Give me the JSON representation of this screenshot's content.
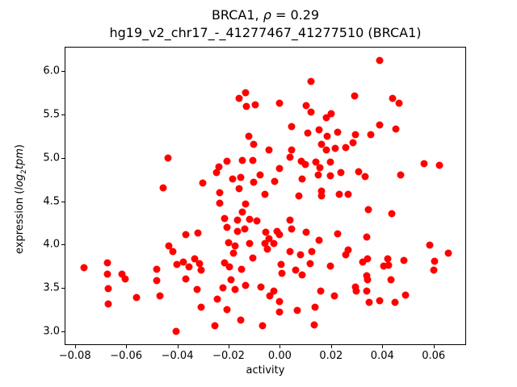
{
  "figure": {
    "title_prefix": "BRCA1, ",
    "title_rho": "ρ",
    "title_suffix": " = 0.29",
    "subtitle": "hg19_v2_chr17_-_41277467_41277510 (BRCA1)",
    "xlabel": "activity",
    "ylabel_prefix": "expression (",
    "ylabel_log": "log",
    "ylabel_sub": "2",
    "ylabel_tpm": "tpm",
    "ylabel_suffix": ")"
  },
  "chart_data": {
    "type": "scatter",
    "title": "BRCA1, ρ = 0.29",
    "subtitle": "hg19_v2_chr17_-_41277467_41277510 (BRCA1)",
    "xlabel": "activity",
    "ylabel": "expression (log2tpm)",
    "marker_color": "#ff0000",
    "marker_size_px": 9,
    "grid": false,
    "xlim": [
      -0.084,
      0.0727
    ],
    "ylim": [
      2.839,
      6.283
    ],
    "xticks": [
      -0.08,
      -0.06,
      -0.04,
      -0.02,
      0.0,
      0.02,
      0.04,
      0.06
    ],
    "xtick_labels": [
      "−0.08",
      "−0.06",
      "−0.04",
      "−0.02",
      "0.00",
      "0.02",
      "0.04",
      "0.06"
    ],
    "yticks": [
      3.0,
      3.5,
      4.0,
      4.5,
      5.0,
      5.5,
      6.0
    ],
    "ytick_labels": [
      "3.0",
      "3.5",
      "4.0",
      "4.5",
      "5.0",
      "5.5",
      "6.0"
    ],
    "points": [
      [
        -0.044,
        5.01
      ],
      [
        -0.046,
        4.66
      ],
      [
        0.012,
        5.89
      ],
      [
        -0.0136,
        5.76
      ],
      [
        -0.0161,
        5.7
      ],
      [
        -0.0133,
        5.6
      ],
      [
        -0.0098,
        5.62
      ],
      [
        -0.0006,
        5.64
      ],
      [
        0.0101,
        5.61
      ],
      [
        0.012,
        5.54
      ],
      [
        0.0177,
        5.47
      ],
      [
        0.0196,
        5.52
      ],
      [
        0.0044,
        5.37
      ],
      [
        0.0107,
        5.3
      ],
      [
        0.0149,
        5.33
      ],
      [
        0.018,
        5.26
      ],
      [
        0.0224,
        5.31
      ],
      [
        -0.0123,
        5.26
      ],
      [
        -0.0104,
        5.17
      ],
      [
        -0.0044,
        5.1
      ],
      [
        0.0044,
        5.1
      ],
      [
        0.0035,
        5.02
      ],
      [
        0.0082,
        4.97
      ],
      [
        0.0095,
        4.93
      ],
      [
        0.0136,
        4.96
      ],
      [
        0.0161,
        5.17
      ],
      [
        0.0177,
        5.1
      ],
      [
        0.0212,
        5.12
      ],
      [
        0.0152,
        4.9
      ],
      [
        0.0193,
        4.96
      ],
      [
        -0.0209,
        4.97
      ],
      [
        -0.024,
        4.91
      ],
      [
        -0.0148,
        4.98
      ],
      [
        -0.0107,
        4.98
      ],
      [
        -0.025,
        4.84
      ],
      [
        -0.0186,
        4.77
      ],
      [
        -0.0155,
        4.78
      ],
      [
        -0.0104,
        4.73
      ],
      [
        -0.0079,
        4.81
      ],
      [
        -0.0022,
        4.74
      ],
      [
        -0.0303,
        4.72
      ],
      [
        -0.0006,
        4.89
      ],
      [
        0.0085,
        4.77
      ],
      [
        0.0148,
        4.81
      ],
      [
        0.0193,
        4.8
      ],
      [
        -0.0161,
        4.65
      ],
      [
        -0.0237,
        4.61
      ],
      [
        -0.006,
        4.59
      ],
      [
        0.007,
        4.57
      ],
      [
        0.0161,
        4.63
      ],
      [
        0.0161,
        4.57
      ],
      [
        0.0228,
        4.59
      ],
      [
        0.0386,
        6.13
      ],
      [
        0.0288,
        5.72
      ],
      [
        0.0436,
        5.7
      ],
      [
        0.0461,
        5.64
      ],
      [
        0.0386,
        5.39
      ],
      [
        0.0449,
        5.34
      ],
      [
        0.0351,
        5.28
      ],
      [
        0.0291,
        5.28
      ],
      [
        0.0284,
        5.18
      ],
      [
        0.0253,
        5.13
      ],
      [
        0.0559,
        4.94
      ],
      [
        0.0619,
        4.92
      ],
      [
        0.0303,
        4.85
      ],
      [
        0.0329,
        4.79
      ],
      [
        0.0234,
        4.84
      ],
      [
        0.0468,
        4.81
      ],
      [
        0.0262,
        4.59
      ],
      [
        -0.037,
        4.12
      ],
      [
        -0.0322,
        4.14
      ],
      [
        -0.0436,
        3.99
      ],
      [
        -0.042,
        3.93
      ],
      [
        -0.0676,
        3.8
      ],
      [
        -0.0768,
        3.74
      ],
      [
        -0.0404,
        3.78
      ],
      [
        -0.0379,
        3.81
      ],
      [
        -0.0357,
        3.75
      ],
      [
        -0.0335,
        3.84
      ],
      [
        -0.0316,
        3.79
      ],
      [
        -0.031,
        3.71
      ],
      [
        -0.0676,
        3.67
      ],
      [
        -0.0619,
        3.67
      ],
      [
        -0.0607,
        3.61
      ],
      [
        -0.0483,
        3.72
      ],
      [
        -0.0483,
        3.59
      ],
      [
        -0.037,
        3.61
      ],
      [
        -0.0325,
        3.49
      ],
      [
        -0.0673,
        3.5
      ],
      [
        -0.0562,
        3.4
      ],
      [
        -0.0471,
        3.42
      ],
      [
        -0.0673,
        3.32
      ],
      [
        -0.031,
        3.29
      ],
      [
        -0.0408,
        3.01
      ],
      [
        -0.0237,
        4.49
      ],
      [
        -0.0136,
        4.48
      ],
      [
        -0.0148,
        4.38
      ],
      [
        -0.0218,
        4.31
      ],
      [
        -0.0209,
        4.21
      ],
      [
        -0.0167,
        4.29
      ],
      [
        -0.012,
        4.3
      ],
      [
        -0.0092,
        4.28
      ],
      [
        -0.0167,
        4.16
      ],
      [
        -0.0139,
        4.19
      ],
      [
        0.0035,
        4.29
      ],
      [
        0.0044,
        4.19
      ],
      [
        -0.0057,
        4.15
      ],
      [
        -0.0044,
        4.08
      ],
      [
        -0.0013,
        4.16
      ],
      [
        -0.0003,
        4.12
      ],
      [
        0.0098,
        4.15
      ],
      [
        0.0149,
        4.06
      ],
      [
        -0.0202,
        4.03
      ],
      [
        -0.0177,
        3.99
      ],
      [
        -0.012,
        4.02
      ],
      [
        -0.006,
        4.02
      ],
      [
        -0.0051,
        3.96
      ],
      [
        -0.0025,
        4.02
      ],
      [
        0.0035,
        3.93
      ],
      [
        0.0076,
        3.89
      ],
      [
        0.0123,
        3.93
      ],
      [
        -0.0183,
        3.91
      ],
      [
        -0.0107,
        3.85
      ],
      [
        -0.0218,
        3.8
      ],
      [
        -0.0199,
        3.75
      ],
      [
        -0.0152,
        3.72
      ],
      [
        0.0003,
        3.78
      ],
      [
        0.0006,
        3.68
      ],
      [
        0.006,
        3.71
      ],
      [
        0.0085,
        3.66
      ],
      [
        0.0114,
        3.79
      ],
      [
        0.0193,
        3.76
      ],
      [
        -0.0193,
        3.6
      ],
      [
        -0.0224,
        3.51
      ],
      [
        -0.0177,
        3.49
      ],
      [
        -0.0136,
        3.54
      ],
      [
        -0.0076,
        3.52
      ],
      [
        -0.0028,
        3.47
      ],
      [
        -0.0041,
        3.42
      ],
      [
        -0.0003,
        3.35
      ],
      [
        -0.0246,
        3.38
      ],
      [
        -0.0209,
        3.26
      ],
      [
        -0.0155,
        3.14
      ],
      [
        -0.0003,
        3.23
      ],
      [
        0.0066,
        3.25
      ],
      [
        0.0133,
        3.29
      ],
      [
        -0.0256,
        3.07
      ],
      [
        -0.007,
        3.07
      ],
      [
        0.013,
        3.08
      ],
      [
        0.0224,
        4.13
      ],
      [
        0.0209,
        3.42
      ],
      [
        0.0155,
        3.47
      ],
      [
        0.0341,
        4.41
      ],
      [
        0.0433,
        4.37
      ],
      [
        0.0335,
        4.1
      ],
      [
        0.0265,
        3.95
      ],
      [
        0.0253,
        3.89
      ],
      [
        0.0319,
        3.81
      ],
      [
        0.0338,
        3.84
      ],
      [
        0.0581,
        4.0
      ],
      [
        0.0654,
        3.91
      ],
      [
        0.06,
        3.82
      ],
      [
        0.0597,
        3.71
      ],
      [
        0.0417,
        3.84
      ],
      [
        0.0401,
        3.76
      ],
      [
        0.042,
        3.77
      ],
      [
        0.048,
        3.83
      ],
      [
        0.0335,
        3.65
      ],
      [
        0.0338,
        3.6
      ],
      [
        0.043,
        3.6
      ],
      [
        0.0291,
        3.52
      ],
      [
        0.0294,
        3.47
      ],
      [
        0.0335,
        3.47
      ],
      [
        0.0487,
        3.43
      ],
      [
        0.0344,
        3.34
      ],
      [
        0.0386,
        3.36
      ],
      [
        0.0446,
        3.34
      ]
    ]
  }
}
